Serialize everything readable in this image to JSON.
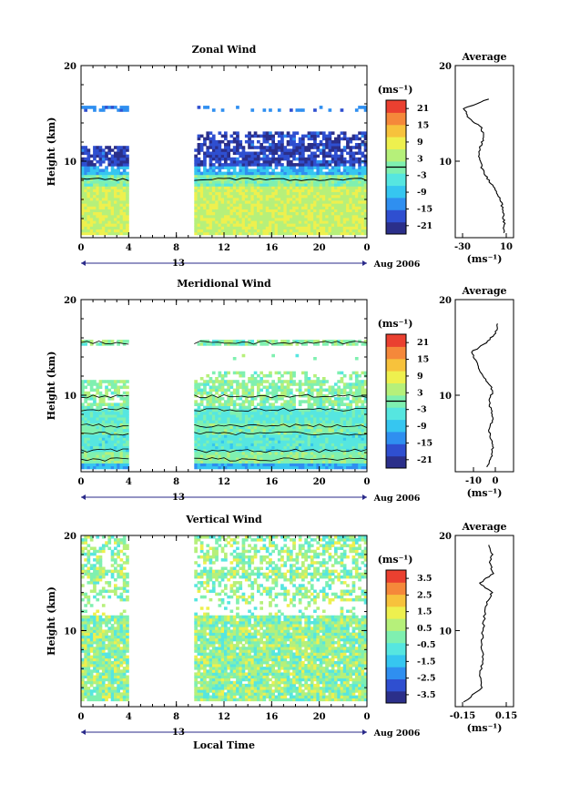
{
  "figure": {
    "xlabel_bottom": "Local Time",
    "date_label": "Aug 2006",
    "day_label": "13",
    "xticks": [
      "0",
      "4",
      "8",
      "12",
      "16",
      "20",
      "0"
    ],
    "ylabel": "Height (km)",
    "yticks": [
      "10",
      "20"
    ],
    "avg_title": "Average",
    "unit_label": "(ms⁻¹)",
    "colors": {
      "palette": [
        "#2b2f8a",
        "#2f4fd0",
        "#2f8ff0",
        "#36c6f0",
        "#56e6e0",
        "#7ff0b0",
        "#b6f07a",
        "#eef04e",
        "#f7c23c",
        "#f5883a",
        "#ea4030"
      ]
    }
  },
  "chart_data": [
    {
      "type": "heatmap",
      "title": "Zonal Wind",
      "x_range_hours": [
        0,
        24
      ],
      "ylim_km": [
        2,
        20
      ],
      "data_gap_hours": [
        4,
        9.5
      ],
      "colorbar_unit": "(ms⁻¹)",
      "colorbar_ticks": [
        "21",
        "15",
        "9",
        "3",
        "-3",
        "-9",
        "-15",
        "-21"
      ],
      "colorbar_range": [
        -24,
        24
      ],
      "contour_level": 0,
      "profile_x_ticks": [
        "-30",
        "10"
      ],
      "profile_xlim": [
        -30,
        10
      ],
      "profile_xlabel": "(ms⁻¹)",
      "profile_heights_km": [
        2.5,
        3.5,
        4.5,
        5.5,
        6.5,
        7.5,
        8.5,
        9.5,
        10.5,
        11.5,
        12.5,
        13.5,
        14.5,
        15.5,
        16.5
      ],
      "profile_values": [
        8,
        8,
        7,
        6,
        3,
        -3,
        -9,
        -13,
        -15,
        -14,
        -10,
        -13,
        -24,
        -29,
        -6
      ]
    },
    {
      "type": "heatmap",
      "title": "Meridional Wind",
      "x_range_hours": [
        0,
        24
      ],
      "ylim_km": [
        2,
        20
      ],
      "data_gap_hours": [
        4,
        9.5
      ],
      "colorbar_unit": "(ms⁻¹)",
      "colorbar_ticks": [
        "21",
        "15",
        "9",
        "3",
        "-3",
        "-9",
        "-15",
        "-21"
      ],
      "colorbar_range": [
        -24,
        24
      ],
      "contour_level": 0,
      "profile_x_ticks": [
        "-10",
        "0"
      ],
      "profile_xlim": [
        -15,
        5
      ],
      "profile_xlabel": "(ms⁻¹)",
      "profile_heights_km": [
        2.5,
        3.5,
        4.5,
        5.5,
        6.5,
        7.5,
        8.5,
        9.5,
        10.5,
        11.5,
        12.5,
        13.5,
        14.5,
        15.5,
        16.5,
        17.5
      ],
      "profile_values": [
        -4,
        -2,
        -1,
        -2,
        -3,
        -1,
        -2,
        -3,
        -1,
        -4,
        -7,
        -9,
        -11,
        -4,
        0,
        1
      ]
    },
    {
      "type": "heatmap",
      "title": "Vertical Wind",
      "x_range_hours": [
        0,
        24
      ],
      "ylim_km": [
        2,
        20
      ],
      "data_gap_hours": [
        4,
        9.5
      ],
      "colorbar_unit": "(ms⁻¹)",
      "colorbar_ticks": [
        "3.5",
        "2.5",
        "1.5",
        "0.5",
        "-0.5",
        "-1.5",
        "-2.5",
        "-3.5"
      ],
      "colorbar_range": [
        -4,
        4
      ],
      "profile_x_ticks": [
        "-0.15",
        "0.15"
      ],
      "profile_xlim": [
        -0.15,
        0.15
      ],
      "profile_xlabel": "(ms⁻¹)",
      "profile_heights_km": [
        2.5,
        4,
        5.5,
        7,
        8.5,
        10,
        11.5,
        13,
        14,
        15,
        16,
        17,
        18,
        19
      ],
      "profile_values": [
        -0.14,
        -0.02,
        -0.03,
        -0.01,
        -0.02,
        -0.01,
        0.0,
        0.02,
        0.05,
        -0.03,
        0.06,
        0.04,
        0.05,
        0.03
      ]
    }
  ]
}
